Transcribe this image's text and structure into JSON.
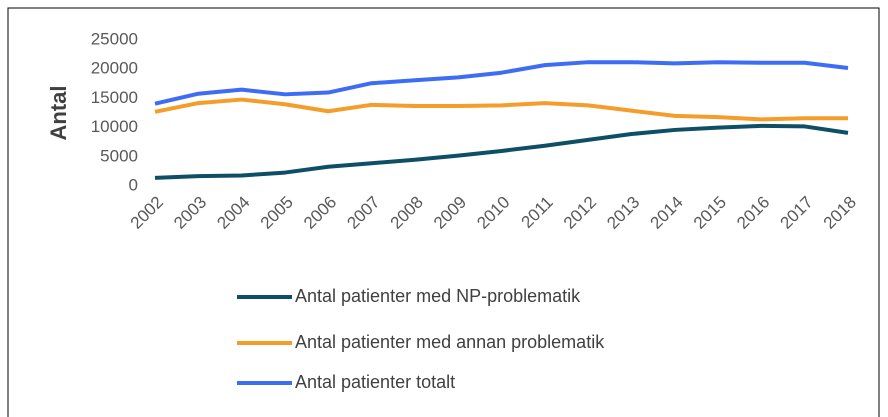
{
  "chart_data": {
    "type": "line",
    "ylabel": "Antal",
    "categories": [
      "2002",
      "2003",
      "2004",
      "2005",
      "2006",
      "2007",
      "2008",
      "2009",
      "2010",
      "2011",
      "2012",
      "2013",
      "2014",
      "2015",
      "2016",
      "2017",
      "2018"
    ],
    "series": [
      {
        "name": "Antal patienter med NP-problematik",
        "color": "#0e4f66",
        "values": [
          1400,
          1700,
          1800,
          2300,
          3300,
          3900,
          4500,
          5200,
          6000,
          6900,
          7900,
          8900,
          9600,
          10000,
          10300,
          10200,
          9100
        ]
      },
      {
        "name": "Antal patienter med annan problematik",
        "color": "#f59d2a",
        "values": [
          12700,
          14200,
          14800,
          14000,
          12800,
          13900,
          13700,
          13700,
          13800,
          14200,
          13800,
          12900,
          12000,
          11800,
          11400,
          11600,
          11600
        ]
      },
      {
        "name": "Antal patienter totalt",
        "color": "#3d6cf5",
        "values": [
          14100,
          15800,
          16500,
          15700,
          16000,
          17600,
          18100,
          18600,
          19400,
          20700,
          21200,
          21200,
          21000,
          21200,
          21100,
          21100,
          20200
        ]
      }
    ],
    "ylim": [
      0,
      25000
    ],
    "yticks": [
      0,
      5000,
      10000,
      15000,
      20000,
      25000
    ],
    "grid": false,
    "legend": "bottom"
  }
}
